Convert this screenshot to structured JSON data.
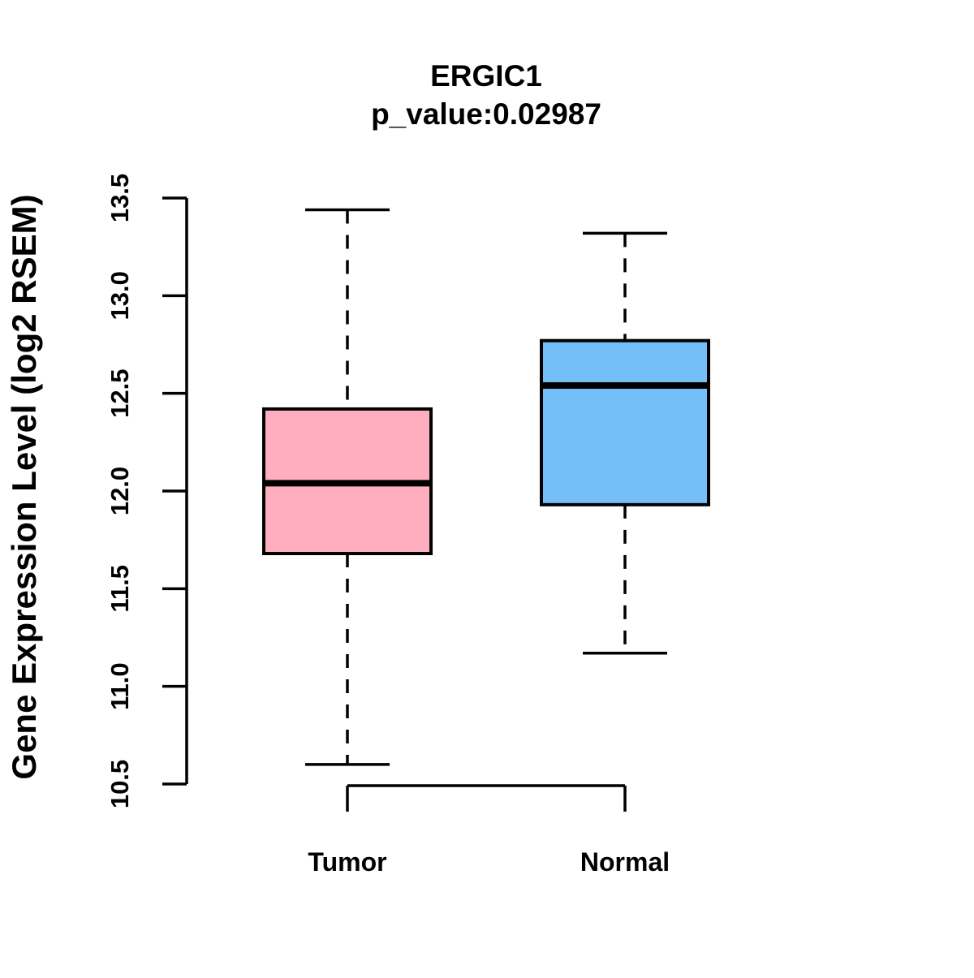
{
  "chart_data": {
    "type": "boxplot",
    "title": "ERGIC1",
    "subtitle": "p_value:0.02987",
    "xlabel": "",
    "ylabel": "Gene Expression Level (log2 RSEM)",
    "ylim": [
      10.5,
      13.5
    ],
    "yticks": [
      10.5,
      11.0,
      11.5,
      12.0,
      12.5,
      13.0,
      13.5
    ],
    "ytick_labels": [
      "10.5",
      "11.0",
      "11.5",
      "12.0",
      "12.5",
      "13.0",
      "13.5"
    ],
    "categories": [
      "Tumor",
      "Normal"
    ],
    "series": [
      {
        "name": "Tumor",
        "whisker_low": 10.6,
        "q1": 11.68,
        "median": 12.04,
        "q3": 12.42,
        "whisker_high": 13.44,
        "fill_color": "#FFAEC0"
      },
      {
        "name": "Normal",
        "whisker_low": 11.17,
        "q1": 11.93,
        "median": 12.54,
        "q3": 12.77,
        "whisker_high": 13.32,
        "fill_color": "#74BFF7"
      }
    ],
    "legend_position": "none",
    "grid": false,
    "whisker_style": "dashed",
    "box_border_color": "#000000",
    "median_color": "#000000",
    "axis_color": "#000000",
    "background_color": "#FFFFFF"
  }
}
